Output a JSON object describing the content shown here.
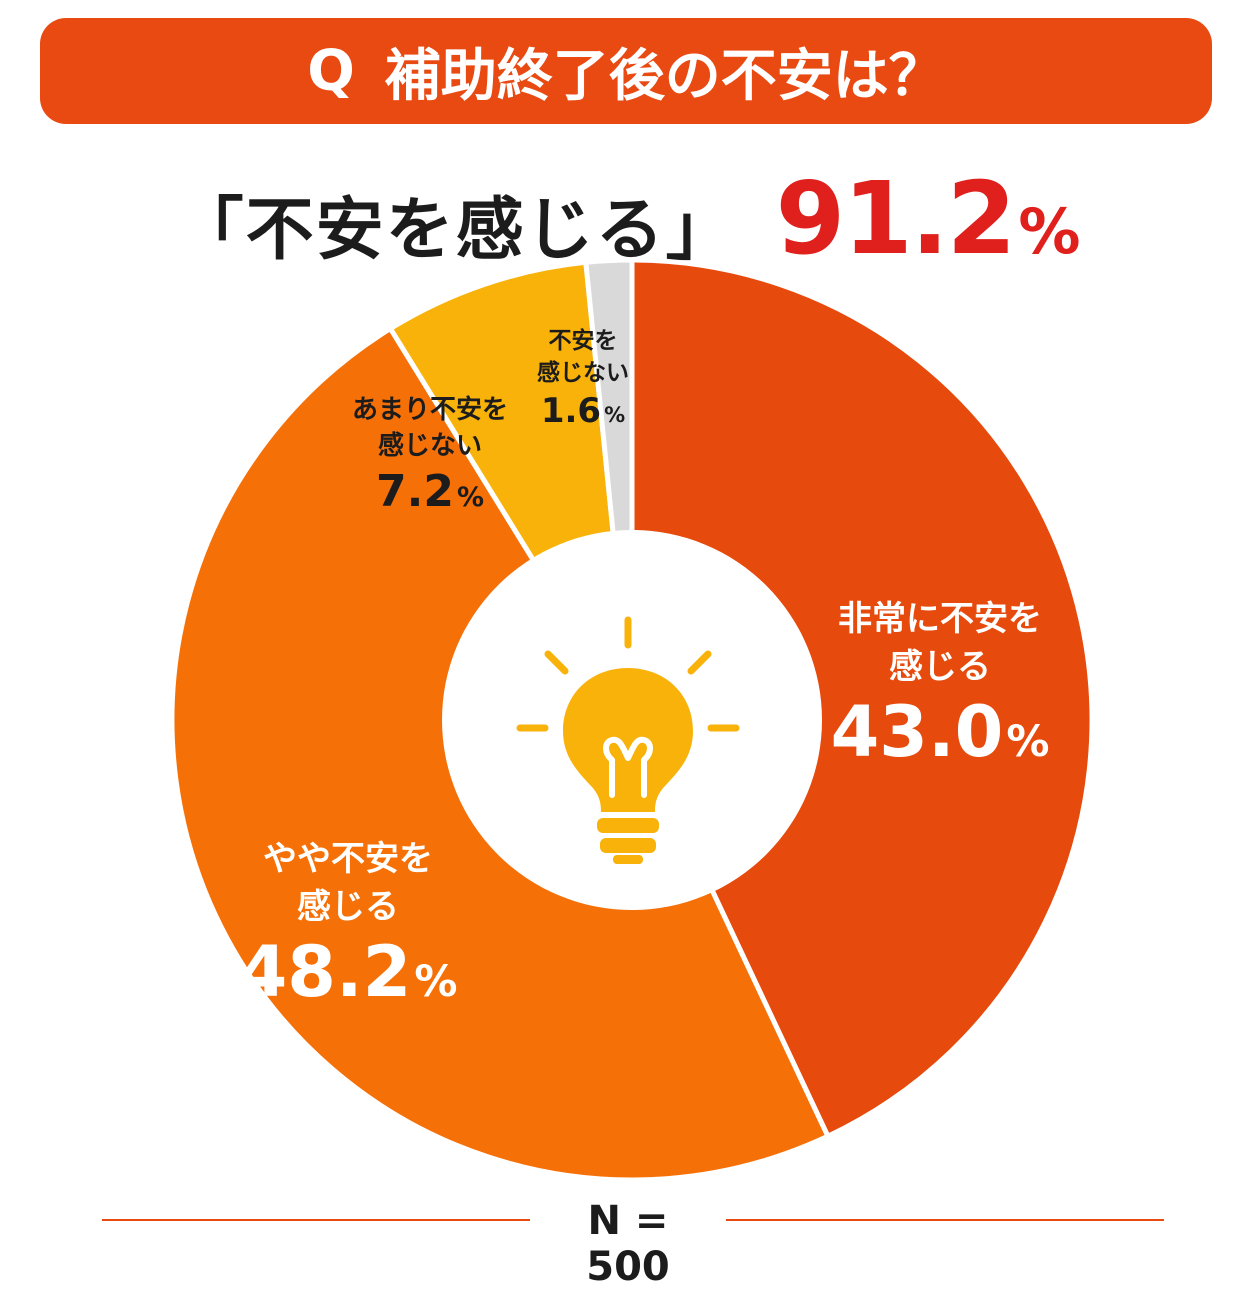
{
  "question": {
    "mark": "Q",
    "text": "補助終了後の不安は？"
  },
  "headline": {
    "text": "「不安を感じる」",
    "value": "91.2",
    "unit": "%"
  },
  "footer": {
    "n_label": "N = 500"
  },
  "colors": {
    "banner": "#e84a12",
    "highlight": "#e0201c",
    "very": "#e64a0c",
    "somewhat": "#f67008",
    "not_much": "#f8b20a",
    "not_at_all": "#d9d9d9",
    "bulb": "#f8b20a"
  },
  "center_icon": "lightbulb-icon",
  "chart_data": {
    "type": "pie",
    "donut": true,
    "title": "補助終了後の不安は？",
    "slices": [
      {
        "label_lines": [
          "非常に不安を",
          "感じる"
        ],
        "value": 43.0,
        "value_text": "43.0",
        "unit": "%",
        "color": "#e64a0c",
        "text_color": "#ffffff"
      },
      {
        "label_lines": [
          "やや不安を",
          "感じる"
        ],
        "value": 48.2,
        "value_text": "48.2",
        "unit": "%",
        "color": "#f67008",
        "text_color": "#ffffff"
      },
      {
        "label_lines": [
          "あまり不安を",
          "感じない"
        ],
        "value": 7.2,
        "value_text": "7.2",
        "unit": "%",
        "color": "#f8b20a",
        "text_color": "#1c1c1c"
      },
      {
        "label_lines": [
          "不安を",
          "感じない"
        ],
        "value": 1.6,
        "value_text": "1.6",
        "unit": "%",
        "color": "#d9d9d9",
        "text_color": "#1c1c1c"
      }
    ],
    "start_angle": "12 o'clock",
    "direction": "clockwise",
    "n": 500
  }
}
